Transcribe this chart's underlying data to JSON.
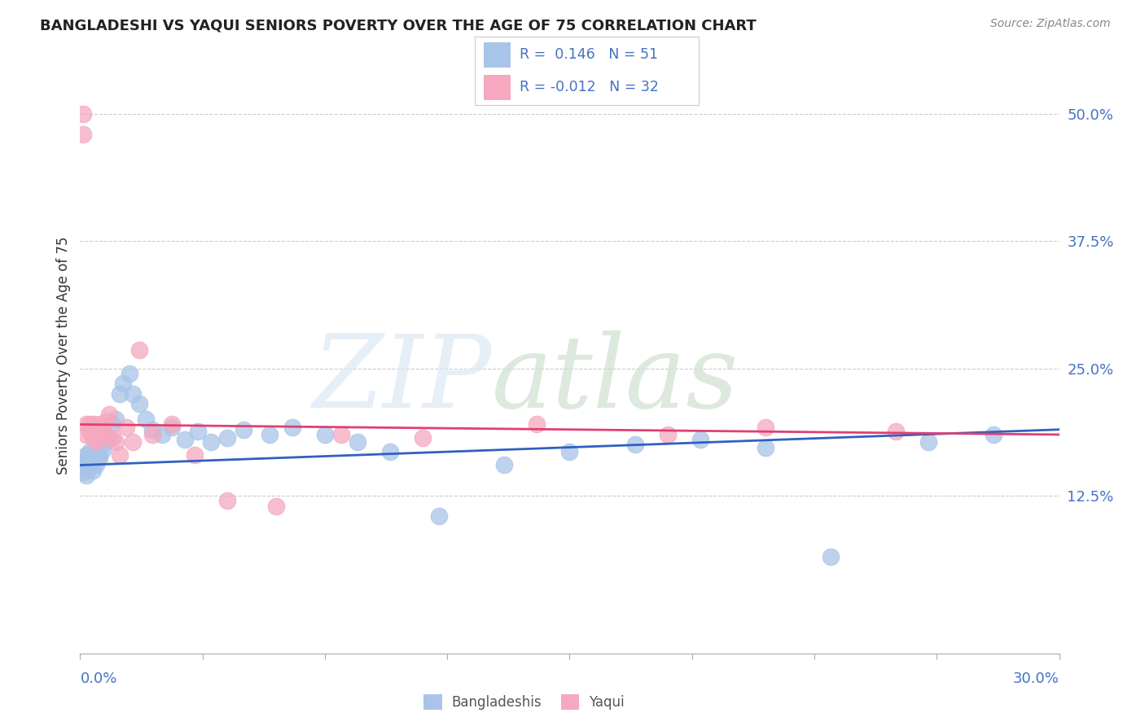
{
  "title": "BANGLADESHI VS YAQUI SENIORS POVERTY OVER THE AGE OF 75 CORRELATION CHART",
  "source": "Source: ZipAtlas.com",
  "ylabel": "Seniors Poverty Over the Age of 75",
  "xlim": [
    0.0,
    0.3
  ],
  "ylim": [
    -0.03,
    0.555
  ],
  "yticks": [
    0.125,
    0.25,
    0.375,
    0.5
  ],
  "ytick_labels": [
    "12.5%",
    "25.0%",
    "37.5%",
    "50.0%"
  ],
  "color_blue": "#a8c4e8",
  "color_pink": "#f5a8bf",
  "color_blue_line": "#3060c0",
  "color_pink_line": "#e04070",
  "color_text_axis": "#4472c4",
  "color_grid": "#cccccc",
  "bangladeshi_x": [
    0.001,
    0.001,
    0.001,
    0.002,
    0.002,
    0.002,
    0.002,
    0.003,
    0.003,
    0.003,
    0.003,
    0.004,
    0.004,
    0.004,
    0.005,
    0.005,
    0.006,
    0.006,
    0.007,
    0.008,
    0.009,
    0.01,
    0.011,
    0.012,
    0.013,
    0.015,
    0.016,
    0.018,
    0.02,
    0.022,
    0.025,
    0.028,
    0.032,
    0.036,
    0.04,
    0.045,
    0.05,
    0.058,
    0.065,
    0.075,
    0.085,
    0.095,
    0.11,
    0.13,
    0.15,
    0.17,
    0.19,
    0.21,
    0.23,
    0.26,
    0.28
  ],
  "bangladeshi_y": [
    0.155,
    0.16,
    0.148,
    0.152,
    0.165,
    0.158,
    0.145,
    0.162,
    0.168,
    0.155,
    0.158,
    0.162,
    0.155,
    0.15,
    0.168,
    0.155,
    0.165,
    0.162,
    0.17,
    0.178,
    0.182,
    0.195,
    0.2,
    0.225,
    0.235,
    0.245,
    0.225,
    0.215,
    0.2,
    0.19,
    0.185,
    0.192,
    0.18,
    0.188,
    0.178,
    0.182,
    0.19,
    0.185,
    0.192,
    0.185,
    0.178,
    0.168,
    0.105,
    0.155,
    0.168,
    0.175,
    0.18,
    0.172,
    0.065,
    0.178,
    0.185
  ],
  "yaqui_x": [
    0.001,
    0.001,
    0.002,
    0.002,
    0.003,
    0.003,
    0.004,
    0.004,
    0.005,
    0.005,
    0.006,
    0.006,
    0.007,
    0.008,
    0.009,
    0.01,
    0.011,
    0.012,
    0.014,
    0.016,
    0.018,
    0.022,
    0.028,
    0.035,
    0.045,
    0.06,
    0.08,
    0.105,
    0.14,
    0.18,
    0.21,
    0.25
  ],
  "yaqui_y": [
    0.5,
    0.48,
    0.195,
    0.185,
    0.195,
    0.188,
    0.182,
    0.195,
    0.178,
    0.185,
    0.195,
    0.182,
    0.19,
    0.198,
    0.205,
    0.182,
    0.178,
    0.165,
    0.192,
    0.178,
    0.268,
    0.185,
    0.195,
    0.165,
    0.12,
    0.115,
    0.185,
    0.182,
    0.195,
    0.185,
    0.192,
    0.188
  ],
  "blue_trend_start_y": 0.155,
  "blue_trend_end_y": 0.19,
  "pink_trend_start_y": 0.195,
  "pink_trend_end_y": 0.185
}
